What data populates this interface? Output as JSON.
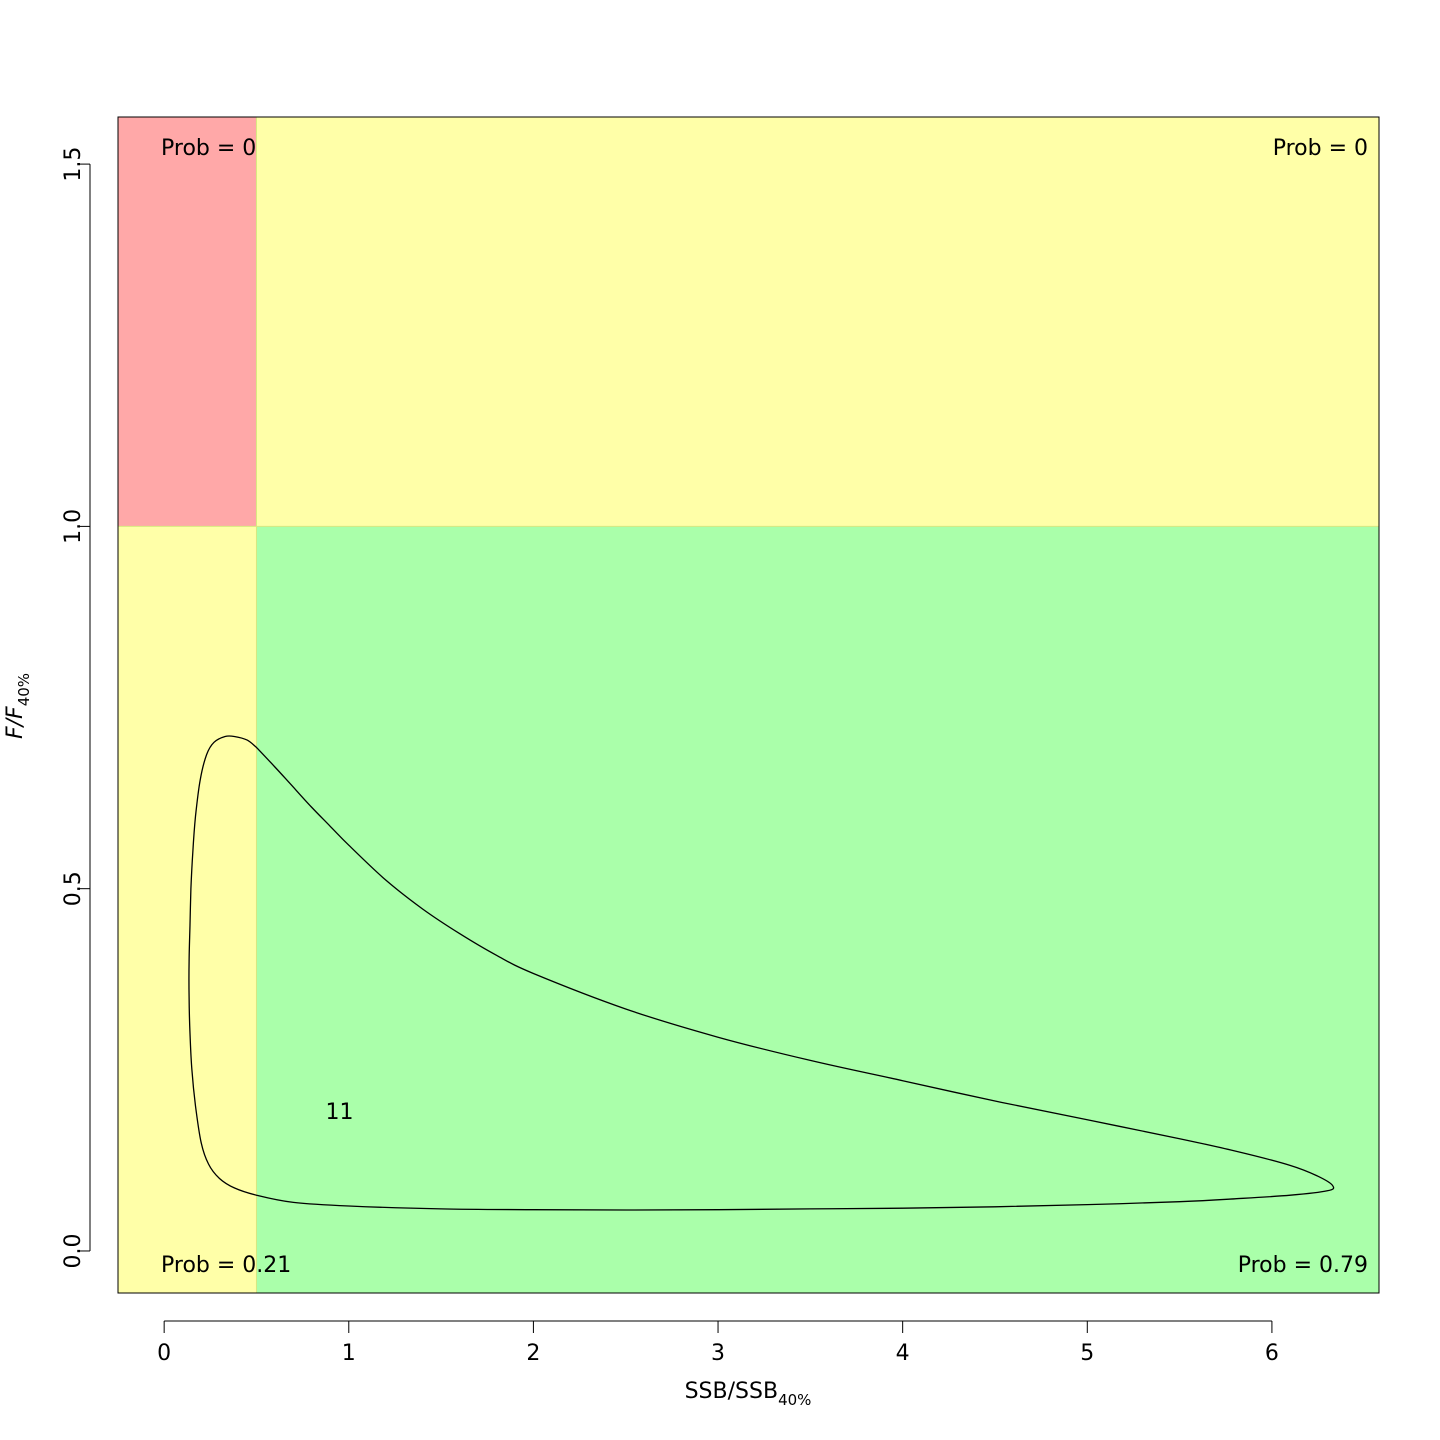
{
  "chart_data": {
    "type": "scatter",
    "subtype": "kobe-plot-contour",
    "xlabel": {
      "main": "SSB/SSB",
      "sub": "40%"
    },
    "ylabel": {
      "main": "F/F",
      "sub": "40%"
    },
    "xlim": [
      -0.25,
      6.58
    ],
    "ylim": [
      -0.058,
      1.565
    ],
    "x_ticks": [
      {
        "value": 0,
        "label": "0"
      },
      {
        "value": 1,
        "label": "1"
      },
      {
        "value": 2,
        "label": "2"
      },
      {
        "value": 3,
        "label": "3"
      },
      {
        "value": 4,
        "label": "4"
      },
      {
        "value": 5,
        "label": "5"
      },
      {
        "value": 6,
        "label": "6"
      }
    ],
    "y_ticks": [
      {
        "value": 0.0,
        "label": "0.0"
      },
      {
        "value": 0.5,
        "label": "0.5"
      },
      {
        "value": 1.0,
        "label": "1.0"
      },
      {
        "value": 1.5,
        "label": "1.5"
      }
    ],
    "thresholds": {
      "ssb": 0.5,
      "f": 1.0
    },
    "zones": [
      {
        "name": "overfished-overfishing",
        "color": "#ffa8a8",
        "prob_label": "Prob = 0",
        "corner": "top-left"
      },
      {
        "name": "overfishing",
        "color": "#ffffa8",
        "prob_label": "Prob = 0",
        "corner": "top-right"
      },
      {
        "name": "overfished",
        "color": "#ffffa8",
        "prob_label": "Prob = 0.21",
        "corner": "bottom-left"
      },
      {
        "name": "healthy",
        "color": "#aaffaa",
        "prob_label": "Prob = 0.79",
        "corner": "bottom-right"
      }
    ],
    "contour": {
      "label": "11",
      "label_at": [
        0.95,
        0.182
      ],
      "points": [
        [
          0.5,
          0.695
        ],
        [
          0.6,
          0.668
        ],
        [
          0.7,
          0.64
        ],
        [
          0.8,
          0.612
        ],
        [
          0.9,
          0.586
        ],
        [
          1.0,
          0.56
        ],
        [
          1.2,
          0.512
        ],
        [
          1.4,
          0.472
        ],
        [
          1.6,
          0.438
        ],
        [
          1.8,
          0.408
        ],
        [
          2.0,
          0.383
        ],
        [
          2.5,
          0.334
        ],
        [
          3.0,
          0.295
        ],
        [
          3.5,
          0.263
        ],
        [
          4.0,
          0.235
        ],
        [
          4.5,
          0.207
        ],
        [
          5.0,
          0.181
        ],
        [
          5.5,
          0.155
        ],
        [
          5.8,
          0.138
        ],
        [
          6.1,
          0.118
        ],
        [
          6.25,
          0.103
        ],
        [
          6.33,
          0.09
        ],
        [
          6.3,
          0.083
        ],
        [
          6.1,
          0.077
        ],
        [
          5.8,
          0.072
        ],
        [
          5.5,
          0.068
        ],
        [
          5.0,
          0.064
        ],
        [
          4.5,
          0.061
        ],
        [
          4.0,
          0.059
        ],
        [
          3.5,
          0.058
        ],
        [
          3.0,
          0.057
        ],
        [
          2.5,
          0.0565
        ],
        [
          2.0,
          0.057
        ],
        [
          1.5,
          0.058
        ],
        [
          1.0,
          0.062
        ],
        [
          0.7,
          0.067
        ],
        [
          0.5,
          0.077
        ],
        [
          0.38,
          0.087
        ],
        [
          0.3,
          0.1
        ],
        [
          0.24,
          0.12
        ],
        [
          0.2,
          0.15
        ],
        [
          0.17,
          0.2
        ],
        [
          0.15,
          0.25
        ],
        [
          0.14,
          0.3
        ],
        [
          0.135,
          0.35
        ],
        [
          0.135,
          0.4
        ],
        [
          0.14,
          0.45
        ],
        [
          0.145,
          0.5
        ],
        [
          0.155,
          0.55
        ],
        [
          0.17,
          0.6
        ],
        [
          0.195,
          0.65
        ],
        [
          0.23,
          0.685
        ],
        [
          0.27,
          0.702
        ],
        [
          0.33,
          0.71
        ],
        [
          0.38,
          0.71
        ],
        [
          0.45,
          0.705
        ],
        [
          0.5,
          0.695
        ]
      ]
    }
  }
}
